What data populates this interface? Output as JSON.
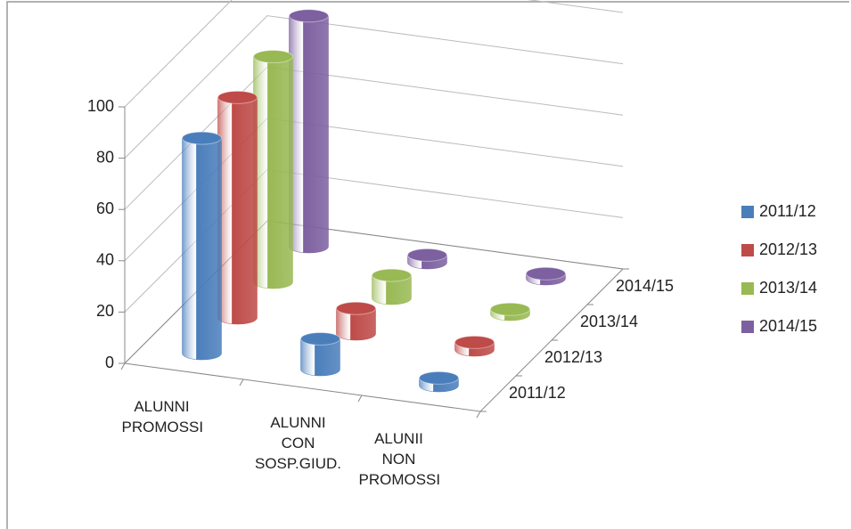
{
  "chart_data": {
    "type": "cylinder3d",
    "categories": [
      "ALUNNI PROMOSSI",
      "ALUNNI CON SOSP.GIUD.",
      "ALUNII NON PROMOSSI"
    ],
    "series": [
      {
        "name": "2011/12",
        "color": "#4a7ebb",
        "values": [
          84,
          12,
          3
        ]
      },
      {
        "name": "2012/13",
        "color": "#be4b48",
        "values": [
          86,
          10,
          3
        ]
      },
      {
        "name": "2013/14",
        "color": "#98b954",
        "values": [
          88,
          9,
          2
        ]
      },
      {
        "name": "2014/15",
        "color": "#7d60a0",
        "values": [
          90,
          3,
          2
        ]
      }
    ],
    "ylim": [
      0,
      100
    ],
    "yticks": [
      0,
      20,
      40,
      60,
      80,
      100
    ],
    "grid": true,
    "legend": "right"
  }
}
